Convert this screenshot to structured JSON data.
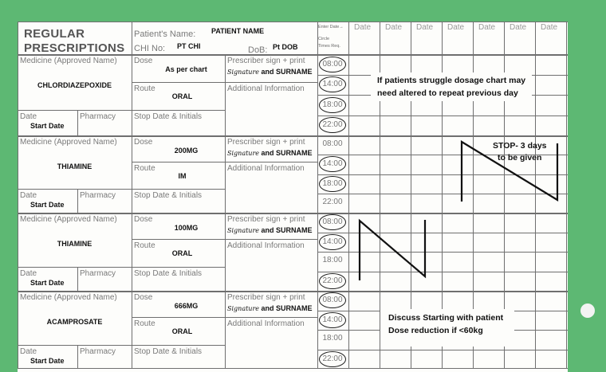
{
  "header": {
    "title_line1": "REGULAR",
    "title_line2": "PRESCRIPTIONS",
    "patient_name_label": "Patient's Name:",
    "patient_name": "PATIENT NAME",
    "chi_label": "CHI No:",
    "chi_value": "PT CHI",
    "dob_label": "DoB:",
    "dob_value": "Pt DOB",
    "enter_date": "Enter Date→",
    "circle_times_1": "Circle",
    "circle_times_2": "Times Req.",
    "date_columns": [
      "Date",
      "Date",
      "Date",
      "Date",
      "Date",
      "Date",
      "Date"
    ]
  },
  "labels": {
    "medicine": "Medicine (Approved Name)",
    "dose": "Dose",
    "route": "Route",
    "prescriber": "Prescriber sign + print",
    "signature": "Signature",
    "and_surname": " and SURNAME",
    "additional": "Additional Information",
    "date": "Date",
    "pharmacy": "Pharmacy",
    "stop_date": "Stop Date & Initials",
    "start_date": "Start Date"
  },
  "times": [
    "08:00",
    "14:00",
    "18:00",
    "22:00"
  ],
  "prescriptions": [
    {
      "medicine": "CHLORDIAZEPOXIDE",
      "dose": "As per chart",
      "route": "ORAL",
      "circled": [
        true,
        true,
        true,
        true
      ]
    },
    {
      "medicine": "THIAMINE",
      "dose": "200MG",
      "route": "IM",
      "circled": [
        false,
        true,
        true,
        false
      ]
    },
    {
      "medicine": "THIAMINE",
      "dose": "100MG",
      "route": "ORAL",
      "circled": [
        true,
        true,
        false,
        true
      ]
    },
    {
      "medicine": "ACAMPROSATE",
      "dose": "666MG",
      "route": "ORAL",
      "circled": [
        true,
        true,
        false,
        true
      ]
    }
  ],
  "annotations": {
    "note1_line1": "If patients struggle dosage chart may",
    "note1_line2": "need altered to repeat previous day",
    "stop_line1": "STOP- 3 days",
    "stop_line2": "to be given",
    "note4_line1": "Discuss Starting with patient",
    "note4_line2": "Dose reduction if <60kg"
  },
  "colors": {
    "background": "#5db873",
    "paper": "#fdfdfb",
    "ink": "#111111"
  }
}
